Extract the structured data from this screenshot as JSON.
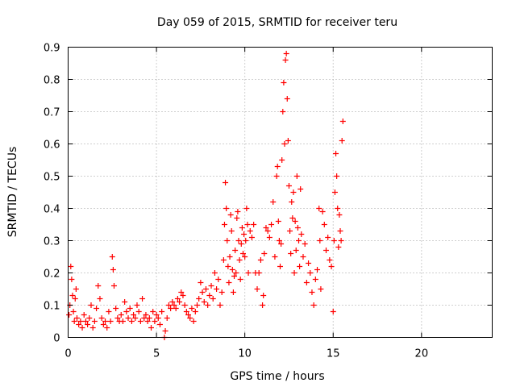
{
  "chart_data": {
    "type": "scatter",
    "title": "Day 059 of 2015, SRMTID for receiver teru",
    "xlabel": "GPS time / hours",
    "ylabel": "SRMTID / TECUs",
    "xlim": [
      0,
      24
    ],
    "ylim": [
      0,
      0.9
    ],
    "xticks": [
      "0",
      "5",
      "10",
      "15",
      "20"
    ],
    "yticks": [
      "0",
      "0.1",
      "0.2",
      "0.3",
      "0.4",
      "0.5",
      "0.6",
      "0.7",
      "0.8",
      "0.9"
    ],
    "grid": true,
    "marker": "+",
    "color": "#ff0000",
    "series": [
      {
        "name": "SRMTID",
        "points": [
          [
            0.05,
            0.07
          ],
          [
            0.1,
            0.1
          ],
          [
            0.15,
            0.22
          ],
          [
            0.2,
            0.18
          ],
          [
            0.25,
            0.13
          ],
          [
            0.3,
            0.08
          ],
          [
            0.35,
            0.05
          ],
          [
            0.4,
            0.12
          ],
          [
            0.45,
            0.15
          ],
          [
            0.5,
            0.06
          ],
          [
            0.6,
            0.04
          ],
          [
            0.7,
            0.05
          ],
          [
            0.8,
            0.03
          ],
          [
            0.9,
            0.07
          ],
          [
            1.0,
            0.05
          ],
          [
            1.1,
            0.04
          ],
          [
            1.2,
            0.06
          ],
          [
            1.3,
            0.1
          ],
          [
            1.4,
            0.03
          ],
          [
            1.5,
            0.05
          ],
          [
            1.6,
            0.09
          ],
          [
            1.7,
            0.16
          ],
          [
            1.8,
            0.12
          ],
          [
            1.9,
            0.06
          ],
          [
            2.0,
            0.04
          ],
          [
            2.1,
            0.05
          ],
          [
            2.2,
            0.03
          ],
          [
            2.3,
            0.08
          ],
          [
            2.4,
            0.05
          ],
          [
            2.5,
            0.25
          ],
          [
            2.55,
            0.21
          ],
          [
            2.6,
            0.16
          ],
          [
            2.7,
            0.09
          ],
          [
            2.8,
            0.06
          ],
          [
            2.9,
            0.05
          ],
          [
            3.0,
            0.07
          ],
          [
            3.1,
            0.05
          ],
          [
            3.2,
            0.11
          ],
          [
            3.3,
            0.08
          ],
          [
            3.4,
            0.06
          ],
          [
            3.5,
            0.09
          ],
          [
            3.6,
            0.05
          ],
          [
            3.7,
            0.07
          ],
          [
            3.8,
            0.06
          ],
          [
            3.9,
            0.1
          ],
          [
            4.0,
            0.08
          ],
          [
            4.1,
            0.05
          ],
          [
            4.2,
            0.12
          ],
          [
            4.3,
            0.06
          ],
          [
            4.4,
            0.07
          ],
          [
            4.5,
            0.05
          ],
          [
            4.6,
            0.06
          ],
          [
            4.7,
            0.03
          ],
          [
            4.8,
            0.08
          ],
          [
            4.9,
            0.05
          ],
          [
            5.0,
            0.07
          ],
          [
            5.1,
            0.06
          ],
          [
            5.2,
            0.04
          ],
          [
            5.3,
            0.08
          ],
          [
            5.45,
            0.0
          ],
          [
            5.5,
            0.02
          ],
          [
            5.6,
            0.06
          ],
          [
            5.7,
            0.1
          ],
          [
            5.8,
            0.09
          ],
          [
            5.9,
            0.11
          ],
          [
            6.0,
            0.1
          ],
          [
            6.1,
            0.09
          ],
          [
            6.2,
            0.12
          ],
          [
            6.3,
            0.11
          ],
          [
            6.4,
            0.14
          ],
          [
            6.5,
            0.13
          ],
          [
            6.6,
            0.1
          ],
          [
            6.7,
            0.08
          ],
          [
            6.8,
            0.07
          ],
          [
            6.9,
            0.06
          ],
          [
            7.0,
            0.09
          ],
          [
            7.1,
            0.05
          ],
          [
            7.2,
            0.08
          ],
          [
            7.3,
            0.1
          ],
          [
            7.4,
            0.12
          ],
          [
            7.5,
            0.17
          ],
          [
            7.6,
            0.14
          ],
          [
            7.7,
            0.11
          ],
          [
            7.8,
            0.15
          ],
          [
            7.9,
            0.1
          ],
          [
            8.0,
            0.13
          ],
          [
            8.1,
            0.16
          ],
          [
            8.2,
            0.12
          ],
          [
            8.3,
            0.2
          ],
          [
            8.4,
            0.15
          ],
          [
            8.5,
            0.18
          ],
          [
            8.6,
            0.1
          ],
          [
            8.7,
            0.14
          ],
          [
            8.8,
            0.24
          ],
          [
            8.85,
            0.35
          ],
          [
            8.9,
            0.48
          ],
          [
            8.95,
            0.4
          ],
          [
            9.0,
            0.3
          ],
          [
            9.05,
            0.22
          ],
          [
            9.1,
            0.17
          ],
          [
            9.15,
            0.25
          ],
          [
            9.2,
            0.38
          ],
          [
            9.25,
            0.33
          ],
          [
            9.3,
            0.21
          ],
          [
            9.35,
            0.14
          ],
          [
            9.4,
            0.19
          ],
          [
            9.45,
            0.27
          ],
          [
            9.5,
            0.2
          ],
          [
            9.55,
            0.37
          ],
          [
            9.6,
            0.39
          ],
          [
            9.65,
            0.3
          ],
          [
            9.7,
            0.24
          ],
          [
            9.75,
            0.18
          ],
          [
            9.8,
            0.29
          ],
          [
            9.85,
            0.34
          ],
          [
            9.9,
            0.26
          ],
          [
            9.95,
            0.32
          ],
          [
            10.0,
            0.25
          ],
          [
            10.05,
            0.3
          ],
          [
            10.1,
            0.4
          ],
          [
            10.15,
            0.35
          ],
          [
            10.2,
            0.2
          ],
          [
            10.3,
            0.33
          ],
          [
            10.4,
            0.31
          ],
          [
            10.5,
            0.35
          ],
          [
            10.6,
            0.2
          ],
          [
            10.7,
            0.15
          ],
          [
            10.8,
            0.2
          ],
          [
            10.9,
            0.24
          ],
          [
            11.0,
            0.1
          ],
          [
            11.05,
            0.13
          ],
          [
            11.1,
            0.26
          ],
          [
            11.2,
            0.34
          ],
          [
            11.3,
            0.33
          ],
          [
            11.4,
            0.31
          ],
          [
            11.5,
            0.35
          ],
          [
            11.6,
            0.42
          ],
          [
            11.7,
            0.25
          ],
          [
            11.8,
            0.5
          ],
          [
            11.85,
            0.53
          ],
          [
            11.9,
            0.36
          ],
          [
            11.95,
            0.3
          ],
          [
            12.0,
            0.22
          ],
          [
            12.05,
            0.29
          ],
          [
            12.1,
            0.55
          ],
          [
            12.15,
            0.7
          ],
          [
            12.2,
            0.79
          ],
          [
            12.25,
            0.6
          ],
          [
            12.3,
            0.86
          ],
          [
            12.35,
            0.88
          ],
          [
            12.4,
            0.74
          ],
          [
            12.45,
            0.61
          ],
          [
            12.5,
            0.47
          ],
          [
            12.55,
            0.33
          ],
          [
            12.6,
            0.26
          ],
          [
            12.65,
            0.42
          ],
          [
            12.7,
            0.37
          ],
          [
            12.75,
            0.45
          ],
          [
            12.8,
            0.2
          ],
          [
            12.85,
            0.36
          ],
          [
            12.9,
            0.27
          ],
          [
            12.95,
            0.5
          ],
          [
            13.0,
            0.34
          ],
          [
            13.05,
            0.3
          ],
          [
            13.1,
            0.22
          ],
          [
            13.15,
            0.46
          ],
          [
            13.2,
            0.32
          ],
          [
            13.3,
            0.25
          ],
          [
            13.4,
            0.29
          ],
          [
            13.5,
            0.17
          ],
          [
            13.6,
            0.23
          ],
          [
            13.7,
            0.2
          ],
          [
            13.8,
            0.14
          ],
          [
            13.9,
            0.1
          ],
          [
            14.0,
            0.18
          ],
          [
            14.1,
            0.21
          ],
          [
            14.2,
            0.4
          ],
          [
            14.25,
            0.3
          ],
          [
            14.3,
            0.15
          ],
          [
            14.4,
            0.39
          ],
          [
            14.5,
            0.35
          ],
          [
            14.6,
            0.27
          ],
          [
            14.7,
            0.31
          ],
          [
            14.8,
            0.24
          ],
          [
            14.9,
            0.22
          ],
          [
            15.0,
            0.08
          ],
          [
            15.05,
            0.3
          ],
          [
            15.1,
            0.45
          ],
          [
            15.15,
            0.57
          ],
          [
            15.2,
            0.5
          ],
          [
            15.25,
            0.4
          ],
          [
            15.3,
            0.28
          ],
          [
            15.35,
            0.38
          ],
          [
            15.4,
            0.33
          ],
          [
            15.45,
            0.3
          ],
          [
            15.5,
            0.61
          ],
          [
            15.55,
            0.67
          ]
        ]
      }
    ]
  }
}
